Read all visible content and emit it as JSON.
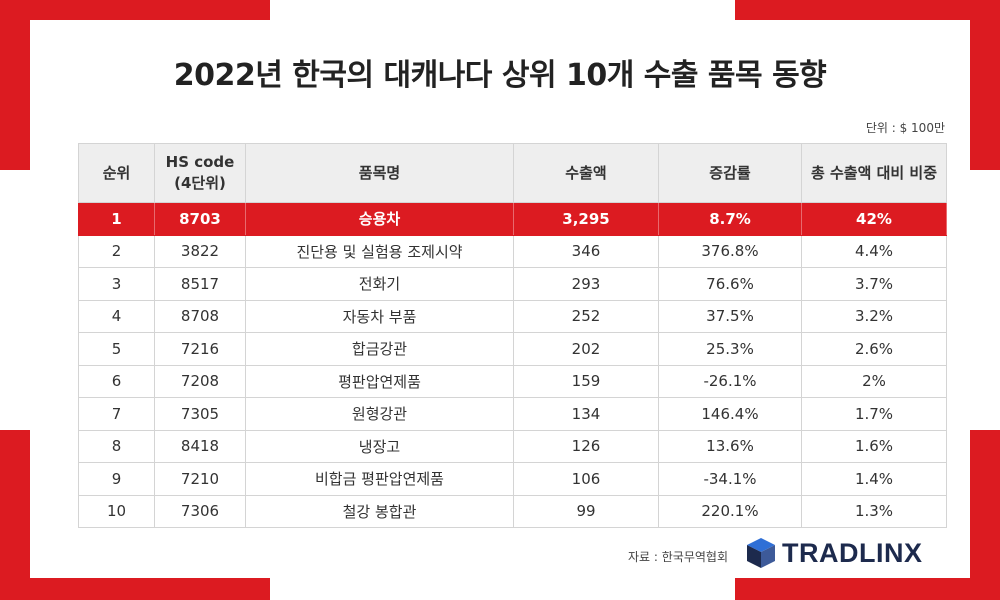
{
  "title": "2022년 한국의 대캐나다 상위 10개 수출 품목 동향",
  "unit": "단위 : $ 100만",
  "table": {
    "headers": {
      "rank": "순위",
      "hs_code_line1": "HS code",
      "hs_code_line2": "(4단위)",
      "item": "품목명",
      "amount": "수출액",
      "growth": "증감률",
      "share": "총 수출액 대비 비중"
    },
    "rows": [
      {
        "rank": "1",
        "hs": "8703",
        "item": "승용차",
        "amount": "3,295",
        "growth": "8.7%",
        "share": "42%"
      },
      {
        "rank": "2",
        "hs": "3822",
        "item": "진단용 및 실험용 조제시약",
        "amount": "346",
        "growth": "376.8%",
        "share": "4.4%"
      },
      {
        "rank": "3",
        "hs": "8517",
        "item": "전화기",
        "amount": "293",
        "growth": "76.6%",
        "share": "3.7%"
      },
      {
        "rank": "4",
        "hs": "8708",
        "item": "자동차 부품",
        "amount": "252",
        "growth": "37.5%",
        "share": "3.2%"
      },
      {
        "rank": "5",
        "hs": "7216",
        "item": "합금강관",
        "amount": "202",
        "growth": "25.3%",
        "share": "2.6%"
      },
      {
        "rank": "6",
        "hs": "7208",
        "item": "평판압연제품",
        "amount": "159",
        "growth": "-26.1%",
        "share": "2%"
      },
      {
        "rank": "7",
        "hs": "7305",
        "item": "원형강관",
        "amount": "134",
        "growth": "146.4%",
        "share": "1.7%"
      },
      {
        "rank": "8",
        "hs": "8418",
        "item": "냉장고",
        "amount": "126",
        "growth": "13.6%",
        "share": "1.6%"
      },
      {
        "rank": "9",
        "hs": "7210",
        "item": "비합금 평판압연제품",
        "amount": "106",
        "growth": "-34.1%",
        "share": "1.4%"
      },
      {
        "rank": "10",
        "hs": "7306",
        "item": "철강 봉합관",
        "amount": "99",
        "growth": "220.1%",
        "share": "1.3%"
      }
    ]
  },
  "source": "자료 : 한국무역협회",
  "logo": {
    "text": "TRADLINX",
    "icon": "tradlinx-cube-icon"
  },
  "colors": {
    "accent": "#dc1b21",
    "header_bg": "#eeeeee",
    "logo_navy": "#1d2a4d",
    "logo_blue": "#2f6fd6"
  }
}
